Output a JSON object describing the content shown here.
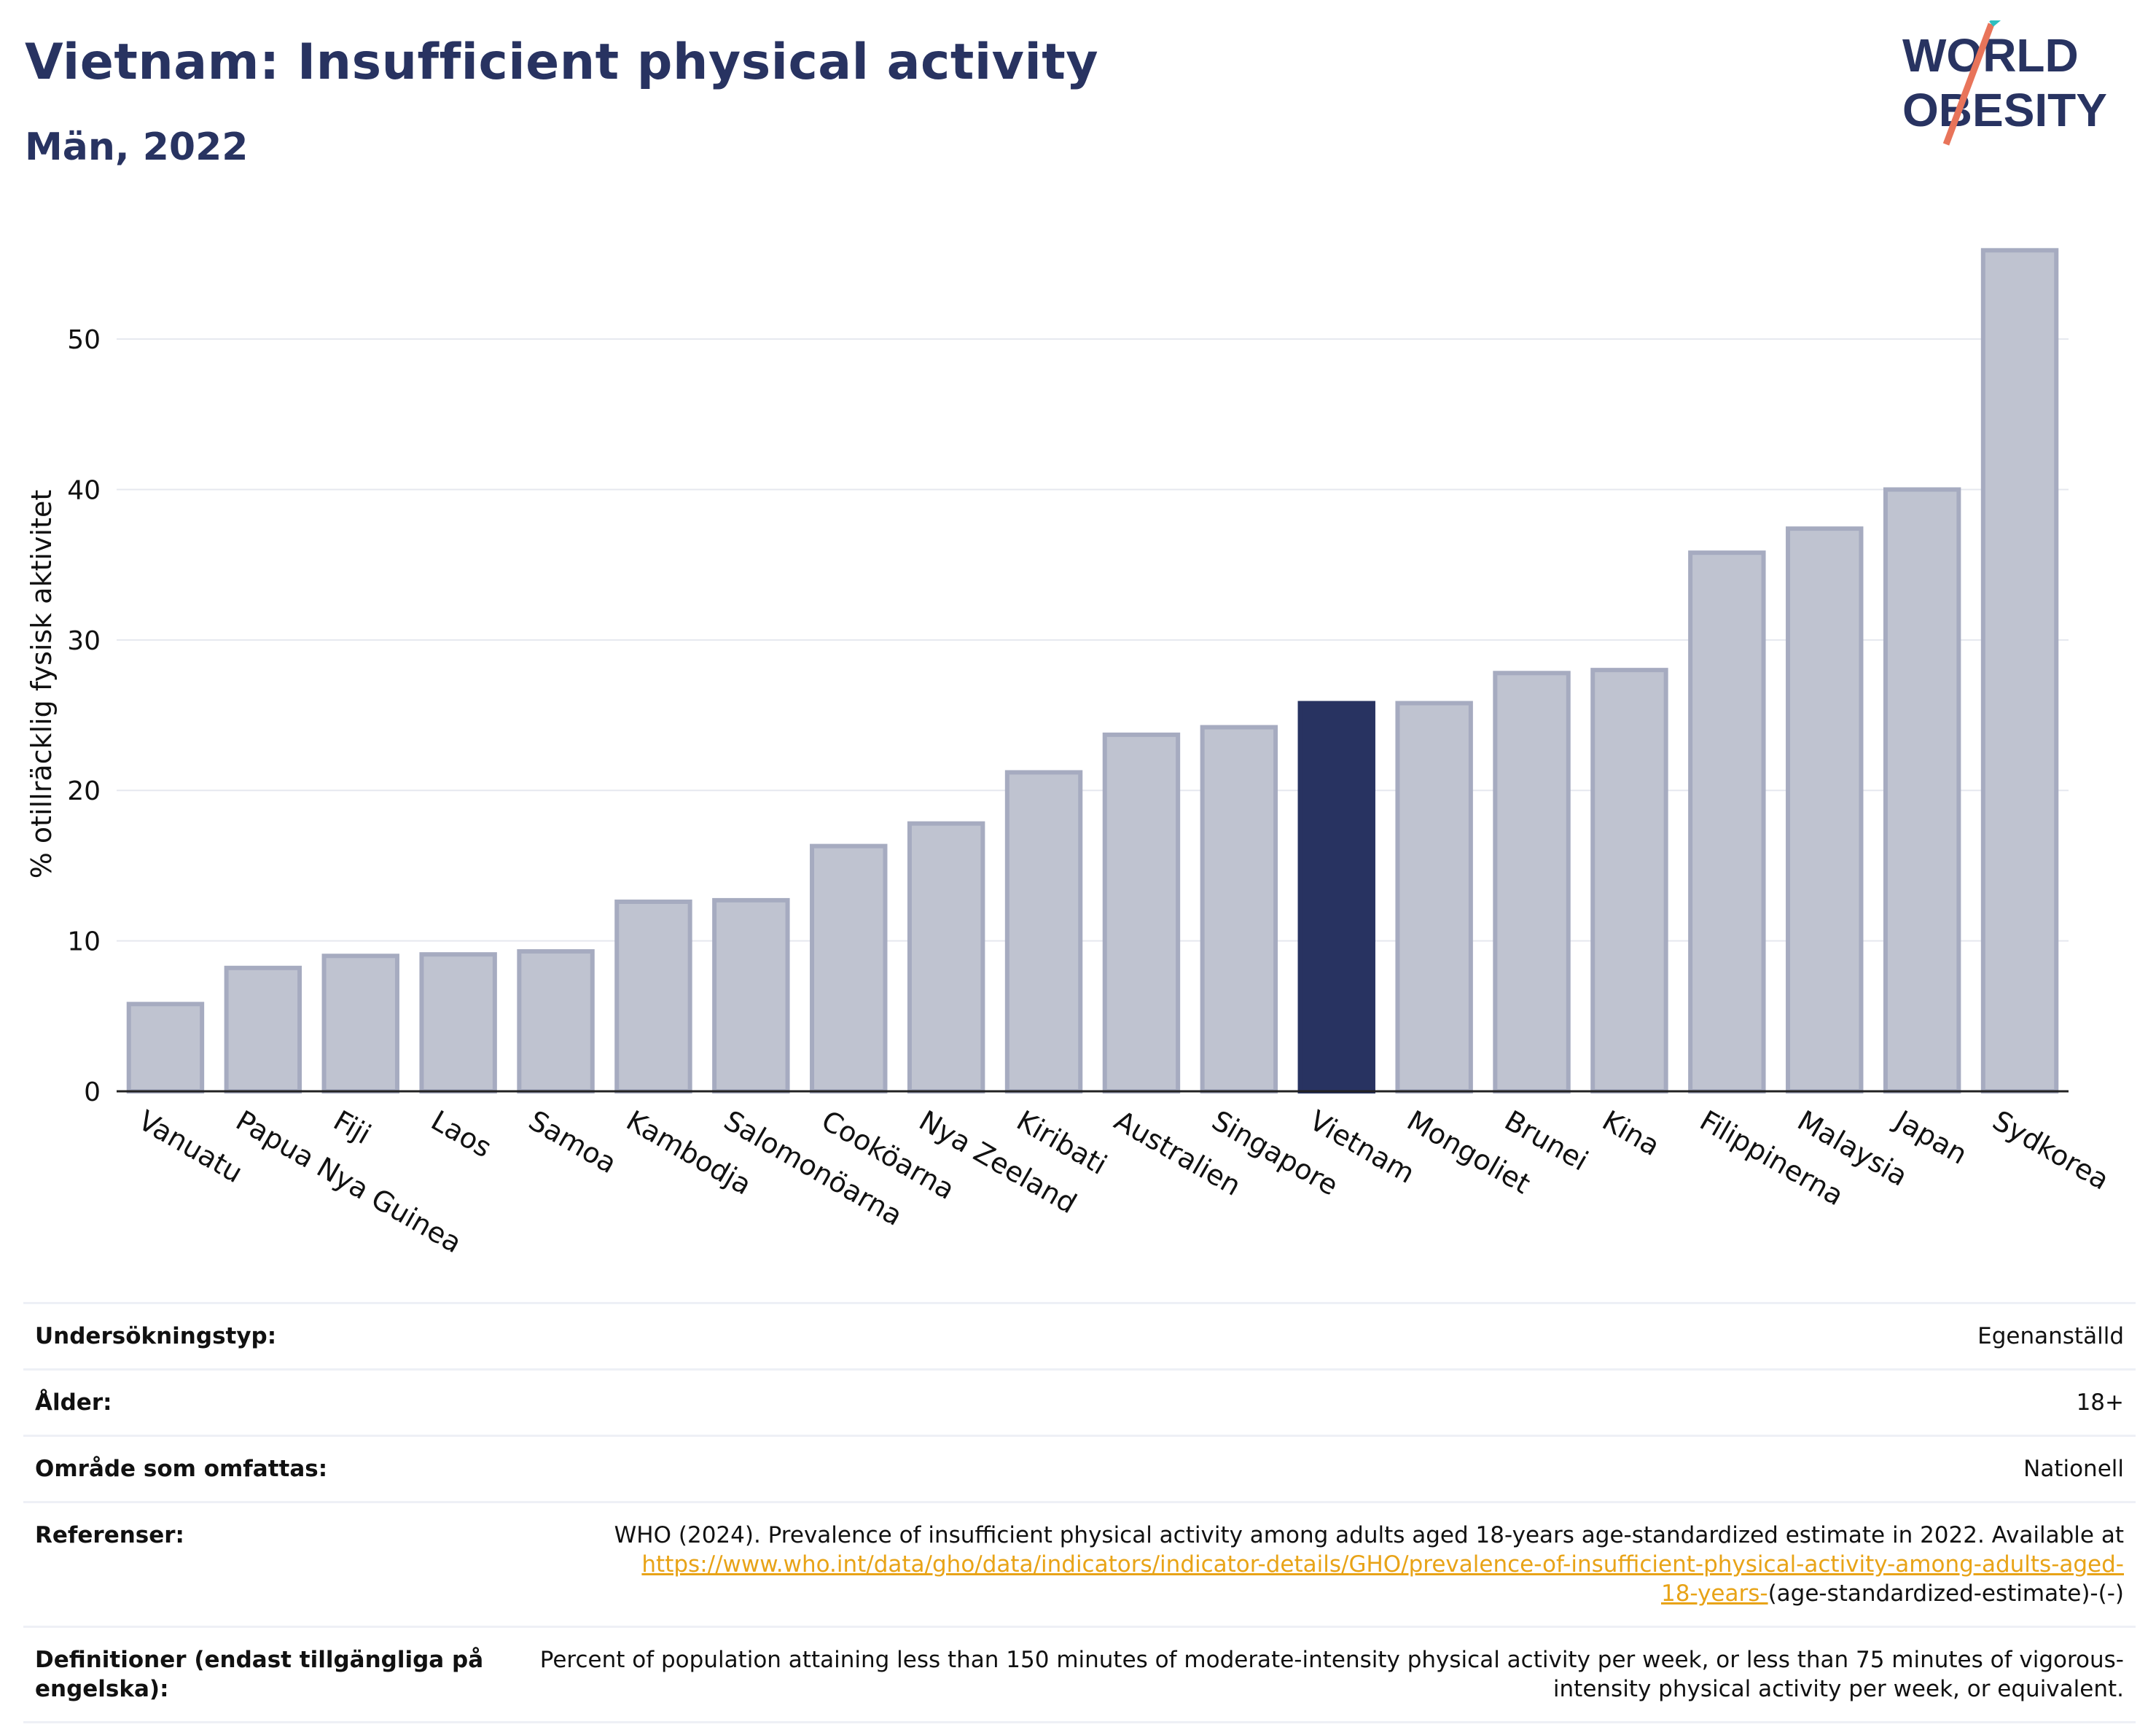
{
  "header": {
    "title": "Vietnam: Insufficient physical activity",
    "subtitle": "Män, 2022"
  },
  "logo": {
    "line1": "WORLD",
    "line2": "OBESITY"
  },
  "chart_data": {
    "type": "bar",
    "categories": [
      "Vanuatu",
      "Papua Nya Guinea",
      "Fiji",
      "Laos",
      "Samoa",
      "Kambodja",
      "Salomonöarna",
      "Cooköarna",
      "Nya Zeeland",
      "Kiribati",
      "Australien",
      "Singapore",
      "Vietnam",
      "Mongoliet",
      "Brunei",
      "Kina",
      "Filippinerna",
      "Malaysia",
      "Japan",
      "Sydkorea"
    ],
    "values": [
      5.8,
      8.2,
      9.0,
      9.1,
      9.3,
      12.6,
      12.7,
      16.3,
      17.8,
      21.2,
      23.7,
      24.2,
      25.8,
      25.8,
      27.8,
      28.0,
      35.8,
      37.4,
      40.0,
      55.9
    ],
    "highlight": "Vietnam",
    "ylabel": "% otillräcklig fysisk aktivitet",
    "yticks": [
      0,
      10,
      20,
      30,
      40,
      50
    ],
    "ylim": [
      0,
      58
    ],
    "grid": true,
    "colors": {
      "bar": "#bfc3d0",
      "bar_border": "#a6abc0",
      "highlight": "#283361",
      "grid": "#e6e8ef"
    }
  },
  "meta": {
    "rows": [
      {
        "key": "Undersökningstyp:",
        "value": "Egenanställd"
      },
      {
        "key": "Ålder:",
        "value": "18+"
      },
      {
        "key": "Område som omfattas:",
        "value": "Nationell"
      }
    ],
    "references": {
      "key": "Referenser:",
      "text": "WHO (2024). Prevalence of insufficient physical activity among adults aged 18-years age-standardized estimate in 2022. Available at",
      "link_line1": "https://www.who.int/data/gho/data/indicators/indicator-details/GHO/prevalence-of-insufficient-physical-activity-among-adults-aged-",
      "link_line2": "18-years-",
      "suffix": "(age-standardized-estimate)-(-)"
    },
    "definitions": {
      "key": "Definitioner (endast tillgängliga på engelska):",
      "value": "Percent of population attaining less than 150 minutes of moderate-intensity physical activity per week, or less than 75 minutes of vigorous-intensity physical activity per week, or equivalent."
    }
  }
}
